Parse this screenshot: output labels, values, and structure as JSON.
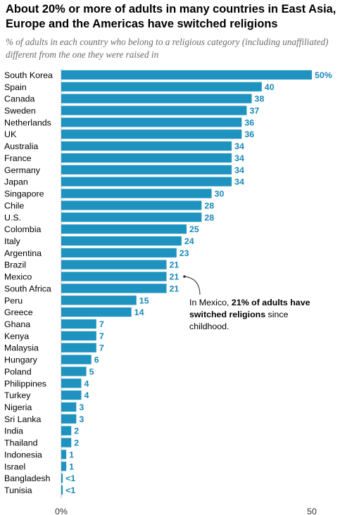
{
  "title": "About 20% or more of adults in many countries in East Asia, Europe and the Americas have switched religions",
  "subtitle": "% of adults in each country who belong to a religious category (including unaffiliated) different from the one they were raised in",
  "annotation": {
    "prefix": "In Mexico, ",
    "bold": "21% of adults have switched religions",
    "suffix": " since childhood."
  },
  "colors": {
    "bar": "#1f93c0",
    "label": "#1a8ab9",
    "axis": "#bfbfbf"
  },
  "chart_data": {
    "type": "bar",
    "orientation": "horizontal",
    "categories": [
      "South Korea",
      "Spain",
      "Canada",
      "Sweden",
      "Netherlands",
      "UK",
      "Australia",
      "France",
      "Germany",
      "Japan",
      "Singapore",
      "Chile",
      "U.S.",
      "Colombia",
      "Italy",
      "Argentina",
      "Brazil",
      "Mexico",
      "South Africa",
      "Peru",
      "Greece",
      "Ghana",
      "Kenya",
      "Malaysia",
      "Hungary",
      "Poland",
      "Philippines",
      "Turkey",
      "Nigeria",
      "Sri Lanka",
      "India",
      "Thailand",
      "Indonesia",
      "Israel",
      "Bangladesh",
      "Tunisia"
    ],
    "values": [
      50,
      40,
      38,
      37,
      36,
      36,
      34,
      34,
      34,
      34,
      30,
      28,
      28,
      25,
      24,
      23,
      21,
      21,
      21,
      15,
      14,
      7,
      7,
      7,
      6,
      5,
      4,
      4,
      3,
      3,
      2,
      2,
      1,
      1,
      0.3,
      0.3
    ],
    "value_labels": [
      "50%",
      "40",
      "38",
      "37",
      "36",
      "36",
      "34",
      "34",
      "34",
      "34",
      "30",
      "28",
      "28",
      "25",
      "24",
      "23",
      "21",
      "21",
      "21",
      "15",
      "14",
      "7",
      "7",
      "7",
      "6",
      "5",
      "4",
      "4",
      "3",
      "3",
      "2",
      "2",
      "1",
      "1",
      "<1",
      "<1"
    ],
    "xlim": [
      0,
      50
    ],
    "xticks": [
      "0%",
      "50"
    ],
    "grid": false,
    "legend": "none"
  }
}
